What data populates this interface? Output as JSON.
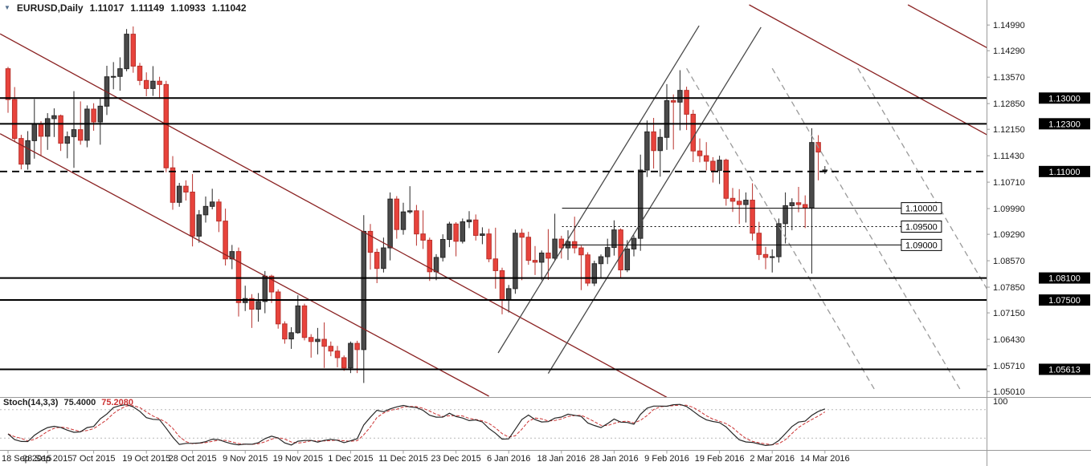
{
  "header": {
    "marker_icon": "▼",
    "symbol_period": "EURUSD,Daily",
    "open": "1.11017",
    "high": "1.11149",
    "low": "1.10933",
    "close": "1.11042"
  },
  "indicator": {
    "name": "Stoch(14,3,3)",
    "main_value": "75.4000",
    "signal_value": "75.2080",
    "k_period": 14,
    "slowing": 3,
    "d_period": 3,
    "levels": [
      20,
      80
    ],
    "scale_top_label": "100"
  },
  "colors": {
    "background": "#ffffff",
    "candle_up": "#4a4a4a",
    "candle_up_border": "#262626",
    "candle_down": "#e8433c",
    "candle_down_border": "#b8322c",
    "level_line": "#000000",
    "trend_descending": "#8b2323",
    "trend_ascending": "#4a4a4a",
    "trend_dashed": "#9a9a9a",
    "stoch_main": "#262626",
    "stoch_signal": "#cc3333",
    "axis_text": "#1a1a1a",
    "separator": "#9a9a9a",
    "badge_bg": "#000000",
    "badge_text": "#ffffff"
  },
  "chart_data": {
    "type": "candlestick",
    "title": "EURUSD,Daily",
    "symbol": "EURUSD",
    "timeframe": "Daily",
    "price_min": 1.0488,
    "price_max": 1.1554,
    "price_axis_ticks": [
      "1.14990",
      "1.14290",
      "1.13570",
      "1.12850",
      "1.12150",
      "1.11430",
      "1.10710",
      "1.09990",
      "1.09290",
      "1.08570",
      "1.07850",
      "1.07150",
      "1.06430",
      "1.05710",
      "1.05010"
    ],
    "x_ticks": [
      {
        "i": 0,
        "label": "18 Sep 2015"
      },
      {
        "i": 6,
        "label": "28 Sep 2015"
      },
      {
        "i": 13,
        "label": "7 Oct 2015"
      },
      {
        "i": 21,
        "label": "19 Oct 2015"
      },
      {
        "i": 28,
        "label": "28 Oct 2015"
      },
      {
        "i": 36,
        "label": "9 Nov 2015"
      },
      {
        "i": 44,
        "label": "19 Nov 2015"
      },
      {
        "i": 52,
        "label": "1 Dec 2015"
      },
      {
        "i": 60,
        "label": "11 Dec 2015"
      },
      {
        "i": 68,
        "label": "23 Dec 2015"
      },
      {
        "i": 76,
        "label": "6 Jan 2016"
      },
      {
        "i": 84,
        "label": "18 Jan 2016"
      },
      {
        "i": 92,
        "label": "28 Jan 2016"
      },
      {
        "i": 100,
        "label": "9 Feb 2016"
      },
      {
        "i": 108,
        "label": "19 Feb 2016"
      },
      {
        "i": 116,
        "label": "2 Mar 2016"
      },
      {
        "i": 124,
        "label": "14 Mar 2016"
      }
    ],
    "candles": [
      [
        1.138,
        1.1385,
        1.126,
        1.1296
      ],
      [
        1.1296,
        1.133,
        1.118,
        1.119
      ],
      [
        1.119,
        1.12,
        1.1106,
        1.112
      ],
      [
        1.112,
        1.121,
        1.1105,
        1.1184
      ],
      [
        1.1184,
        1.1297,
        1.1135,
        1.123
      ],
      [
        1.123,
        1.1237,
        1.1142,
        1.1196
      ],
      [
        1.1196,
        1.1259,
        1.1159,
        1.1244
      ],
      [
        1.1244,
        1.1272,
        1.1194,
        1.1252
      ],
      [
        1.1252,
        1.1255,
        1.1156,
        1.1177
      ],
      [
        1.1177,
        1.1209,
        1.1136,
        1.1195
      ],
      [
        1.1195,
        1.1319,
        1.111,
        1.1214
      ],
      [
        1.1214,
        1.1291,
        1.1173,
        1.1185
      ],
      [
        1.1185,
        1.128,
        1.1166,
        1.127
      ],
      [
        1.127,
        1.1286,
        1.1211,
        1.1235
      ],
      [
        1.1235,
        1.1298,
        1.1173,
        1.1278
      ],
      [
        1.1278,
        1.1388,
        1.1254,
        1.1358
      ],
      [
        1.1358,
        1.1398,
        1.1324,
        1.1359
      ],
      [
        1.1359,
        1.1411,
        1.132,
        1.138
      ],
      [
        1.138,
        1.1488,
        1.1373,
        1.1474
      ],
      [
        1.1474,
        1.1495,
        1.1369,
        1.1387
      ],
      [
        1.1387,
        1.1396,
        1.1335,
        1.1348
      ],
      [
        1.1348,
        1.137,
        1.1305,
        1.1326
      ],
      [
        1.1326,
        1.1387,
        1.1306,
        1.1346
      ],
      [
        1.1346,
        1.1358,
        1.1298,
        1.1337
      ],
      [
        1.1337,
        1.1347,
        1.1098,
        1.111
      ],
      [
        1.111,
        1.1142,
        1.0996,
        1.1016
      ],
      [
        1.1016,
        1.1069,
        1.1004,
        1.106
      ],
      [
        1.106,
        1.1076,
        1.1021,
        1.1044
      ],
      [
        1.1044,
        1.1093,
        1.0896,
        1.0924
      ],
      [
        1.0924,
        1.0995,
        1.0906,
        1.0982
      ],
      [
        1.0982,
        1.1032,
        1.0961,
        1.1005
      ],
      [
        1.1005,
        1.1053,
        1.0997,
        1.1017
      ],
      [
        1.1017,
        1.1025,
        1.0935,
        1.0965
      ],
      [
        1.0965,
        1.0999,
        1.0844,
        1.0862
      ],
      [
        1.0862,
        1.09,
        1.0834,
        1.0882
      ],
      [
        1.0882,
        1.0893,
        1.0705,
        1.0743
      ],
      [
        1.0743,
        1.0789,
        1.072,
        1.0754
      ],
      [
        1.0754,
        1.0766,
        1.0674,
        1.0725
      ],
      [
        1.0725,
        1.0769,
        1.0691,
        1.0746
      ],
      [
        1.0746,
        1.0829,
        1.0714,
        1.0815
      ],
      [
        1.0815,
        1.0819,
        1.0742,
        1.0772
      ],
      [
        1.0772,
        1.0779,
        1.0672,
        1.0685
      ],
      [
        1.0685,
        1.0692,
        1.0631,
        1.0644
      ],
      [
        1.0644,
        1.0676,
        1.0617,
        1.0661
      ],
      [
        1.0661,
        1.0763,
        1.0658,
        1.0734
      ],
      [
        1.0734,
        1.074,
        1.064,
        1.0648
      ],
      [
        1.0648,
        1.0657,
        1.0593,
        1.0637
      ],
      [
        1.0637,
        1.0674,
        1.0602,
        1.0643
      ],
      [
        1.0643,
        1.0689,
        1.0565,
        1.0624
      ],
      [
        1.0624,
        1.0637,
        1.0597,
        1.0611
      ],
      [
        1.0611,
        1.0625,
        1.0567,
        1.0593
      ],
      [
        1.0593,
        1.0599,
        1.0557,
        1.0565
      ],
      [
        1.0565,
        1.0637,
        1.0551,
        1.0632
      ],
      [
        1.0632,
        1.0639,
        1.0551,
        1.0615
      ],
      [
        1.0615,
        1.0981,
        1.0524,
        1.0937
      ],
      [
        1.0937,
        1.0957,
        1.0833,
        1.088
      ],
      [
        1.088,
        1.089,
        1.0796,
        1.0836
      ],
      [
        1.0836,
        1.092,
        1.0825,
        1.0892
      ],
      [
        1.0892,
        1.1043,
        1.0858,
        1.1025
      ],
      [
        1.1025,
        1.1033,
        1.0917,
        1.0942
      ],
      [
        1.0942,
        1.1015,
        1.0928,
        1.099
      ],
      [
        1.099,
        1.106,
        1.0985,
        1.0993
      ],
      [
        1.0993,
        1.1009,
        1.0898,
        1.093
      ],
      [
        1.093,
        1.0994,
        1.0889,
        1.0913
      ],
      [
        1.0913,
        1.092,
        1.0802,
        1.0827
      ],
      [
        1.0827,
        1.0875,
        1.0804,
        1.0866
      ],
      [
        1.0866,
        1.0929,
        1.0855,
        1.0915
      ],
      [
        1.0915,
        1.0963,
        1.0894,
        1.0957
      ],
      [
        1.0957,
        1.0962,
        1.0869,
        1.091
      ],
      [
        1.091,
        1.0972,
        1.0904,
        1.0963
      ],
      [
        1.0963,
        1.0992,
        1.0946,
        1.0968
      ],
      [
        1.0968,
        1.0983,
        1.0912,
        1.0926
      ],
      [
        1.0926,
        1.0948,
        1.0902,
        1.093
      ],
      [
        1.093,
        1.0944,
        1.0853,
        1.0862
      ],
      [
        1.0862,
        1.0947,
        1.0781,
        1.083
      ],
      [
        1.083,
        1.0838,
        1.0711,
        1.0749
      ],
      [
        1.0749,
        1.0791,
        1.0716,
        1.0781
      ],
      [
        1.0781,
        1.0942,
        1.0767,
        1.0932
      ],
      [
        1.0932,
        1.0944,
        1.0804,
        1.0921
      ],
      [
        1.0921,
        1.0936,
        1.0846,
        1.0858
      ],
      [
        1.0858,
        1.0897,
        1.0818,
        1.0853
      ],
      [
        1.0853,
        1.0885,
        1.0804,
        1.0878
      ],
      [
        1.0878,
        1.0943,
        1.0805,
        1.0864
      ],
      [
        1.0864,
        1.0985,
        1.0858,
        1.0916
      ],
      [
        1.0916,
        1.0925,
        1.0863,
        1.0892
      ],
      [
        1.0892,
        1.094,
        1.0859,
        1.0909
      ],
      [
        1.0909,
        1.0977,
        1.0877,
        1.0892
      ],
      [
        1.0892,
        1.0898,
        1.0777,
        1.0873
      ],
      [
        1.0873,
        1.088,
        1.0788,
        1.0796
      ],
      [
        1.0796,
        1.0857,
        1.0788,
        1.0849
      ],
      [
        1.0849,
        1.0874,
        1.081,
        1.0868
      ],
      [
        1.0868,
        1.0917,
        1.0848,
        1.0893
      ],
      [
        1.0893,
        1.0967,
        1.0871,
        1.0941
      ],
      [
        1.0941,
        1.0945,
        1.081,
        1.0832
      ],
      [
        1.0832,
        1.0913,
        1.0826,
        1.0889
      ],
      [
        1.0889,
        1.0926,
        1.0869,
        1.0918
      ],
      [
        1.0918,
        1.1146,
        1.0884,
        1.1104
      ],
      [
        1.1104,
        1.1239,
        1.1085,
        1.1208
      ],
      [
        1.1208,
        1.1246,
        1.1108,
        1.1157
      ],
      [
        1.1157,
        1.1216,
        1.1086,
        1.1193
      ],
      [
        1.1193,
        1.1338,
        1.1159,
        1.1293
      ],
      [
        1.1293,
        1.131,
        1.116,
        1.1289
      ],
      [
        1.1289,
        1.1376,
        1.1212,
        1.1321
      ],
      [
        1.1321,
        1.1331,
        1.1213,
        1.1256
      ],
      [
        1.1256,
        1.1268,
        1.1126,
        1.1156
      ],
      [
        1.1156,
        1.119,
        1.1125,
        1.1143
      ],
      [
        1.1143,
        1.118,
        1.1103,
        1.1128
      ],
      [
        1.1128,
        1.1139,
        1.107,
        1.1103
      ],
      [
        1.1103,
        1.1143,
        1.1066,
        1.1131
      ],
      [
        1.1131,
        1.1135,
        1.1007,
        1.1027
      ],
      [
        1.1027,
        1.1055,
        1.099,
        1.1019
      ],
      [
        1.1019,
        1.1052,
        1.0957,
        1.101
      ],
      [
        1.101,
        1.1043,
        1.0961,
        1.1022
      ],
      [
        1.1022,
        1.1068,
        1.0912,
        1.0932
      ],
      [
        1.0932,
        1.0963,
        1.0859,
        1.0874
      ],
      [
        1.0874,
        1.0895,
        1.0834,
        1.0866
      ],
      [
        1.0866,
        1.0888,
        1.0825,
        1.0868
      ],
      [
        1.0868,
        1.0972,
        1.0852,
        1.0958
      ],
      [
        1.0958,
        1.1043,
        1.0904,
        1.1007
      ],
      [
        1.1007,
        1.1027,
        1.094,
        1.1015
      ],
      [
        1.1015,
        1.1058,
        1.0989,
        1.101
      ],
      [
        1.101,
        1.1035,
        1.0946,
        1.1001
      ],
      [
        1.1001,
        1.1218,
        1.0822,
        1.1179
      ],
      [
        1.1179,
        1.1199,
        1.1076,
        1.1153
      ],
      [
        1.11017,
        1.11149,
        1.10933,
        1.11042
      ]
    ],
    "h_lines": [
      {
        "price": 1.13,
        "label": "1.13000",
        "style": "solid",
        "weight": 2,
        "span": "full",
        "label_type": "axis-black"
      },
      {
        "price": 1.123,
        "label": "1.12300",
        "style": "solid",
        "weight": 2,
        "span": "full",
        "label_type": "axis-black"
      },
      {
        "price": 1.11,
        "label": "1.11000",
        "style": "dashed",
        "weight": 1.8,
        "span": "full",
        "label_type": "axis-black"
      },
      {
        "price": 1.1,
        "label": "1.10000",
        "style": "solid",
        "weight": 1,
        "span": "partial",
        "x1": 84.1,
        "x2": 135.6,
        "label_type": "inline-box"
      },
      {
        "price": 1.095,
        "label": "1.09500",
        "style": "dotted",
        "weight": 1,
        "span": "partial",
        "x1": 84.1,
        "x2": 135.6,
        "label_type": "inline-box"
      },
      {
        "price": 1.09,
        "label": "1.09000",
        "style": "solid",
        "weight": 1,
        "span": "partial",
        "x1": 84.1,
        "x2": 135.6,
        "label_type": "inline-box"
      },
      {
        "price": 1.081,
        "label": "1.08100",
        "style": "solid",
        "weight": 2,
        "span": "full",
        "label_type": "axis-black"
      },
      {
        "price": 1.075,
        "label": "1.07500",
        "style": "solid",
        "weight": 2,
        "span": "full",
        "label_type": "axis-black"
      },
      {
        "price": 1.05613,
        "label": "1.05613",
        "style": "solid",
        "weight": 2,
        "span": "full",
        "label_type": "axis-black"
      }
    ],
    "trend_lines": [
      {
        "name": "down-channel-upper",
        "x1": -1.2,
        "p1": 1.1475,
        "x2": 100,
        "p2": 1.0485,
        "color": "#8b2323",
        "dash": ""
      },
      {
        "name": "down-channel-lower",
        "x1": -1.2,
        "p1": 1.1203,
        "x2": 73,
        "p2": 1.0488,
        "color": "#8b2323",
        "dash": ""
      },
      {
        "name": "down-channel-outer-1",
        "x1": 112.5,
        "p1": 1.1554,
        "x2": 148.6,
        "p2": 1.12,
        "color": "#8b2323",
        "dash": ""
      },
      {
        "name": "down-channel-outer-2",
        "x1": 136.6,
        "p1": 1.1554,
        "x2": 148.6,
        "p2": 1.1437,
        "color": "#8b2323",
        "dash": ""
      },
      {
        "name": "up-channel-upper",
        "x1": 74.4,
        "p1": 1.0606,
        "x2": 104.9,
        "p2": 1.1497,
        "color": "#4a4a4a",
        "dash": ""
      },
      {
        "name": "up-channel-lower",
        "x1": 82,
        "p1": 1.055,
        "x2": 114.3,
        "p2": 1.1493,
        "color": "#4a4a4a",
        "dash": ""
      },
      {
        "name": "down-dashed-1",
        "x1": 103,
        "p1": 1.1381,
        "x2": 131.7,
        "p2": 1.0501,
        "color": "#9a9a9a",
        "dash": "7 5"
      },
      {
        "name": "down-dashed-2",
        "x1": 116,
        "p1": 1.1381,
        "x2": 144.7,
        "p2": 1.0501,
        "color": "#9a9a9a",
        "dash": "7 5"
      },
      {
        "name": "down-dashed-3",
        "x1": 129,
        "p1": 1.1381,
        "x2": 148.6,
        "p2": 1.078,
        "color": "#9a9a9a",
        "dash": "7 5"
      }
    ]
  }
}
